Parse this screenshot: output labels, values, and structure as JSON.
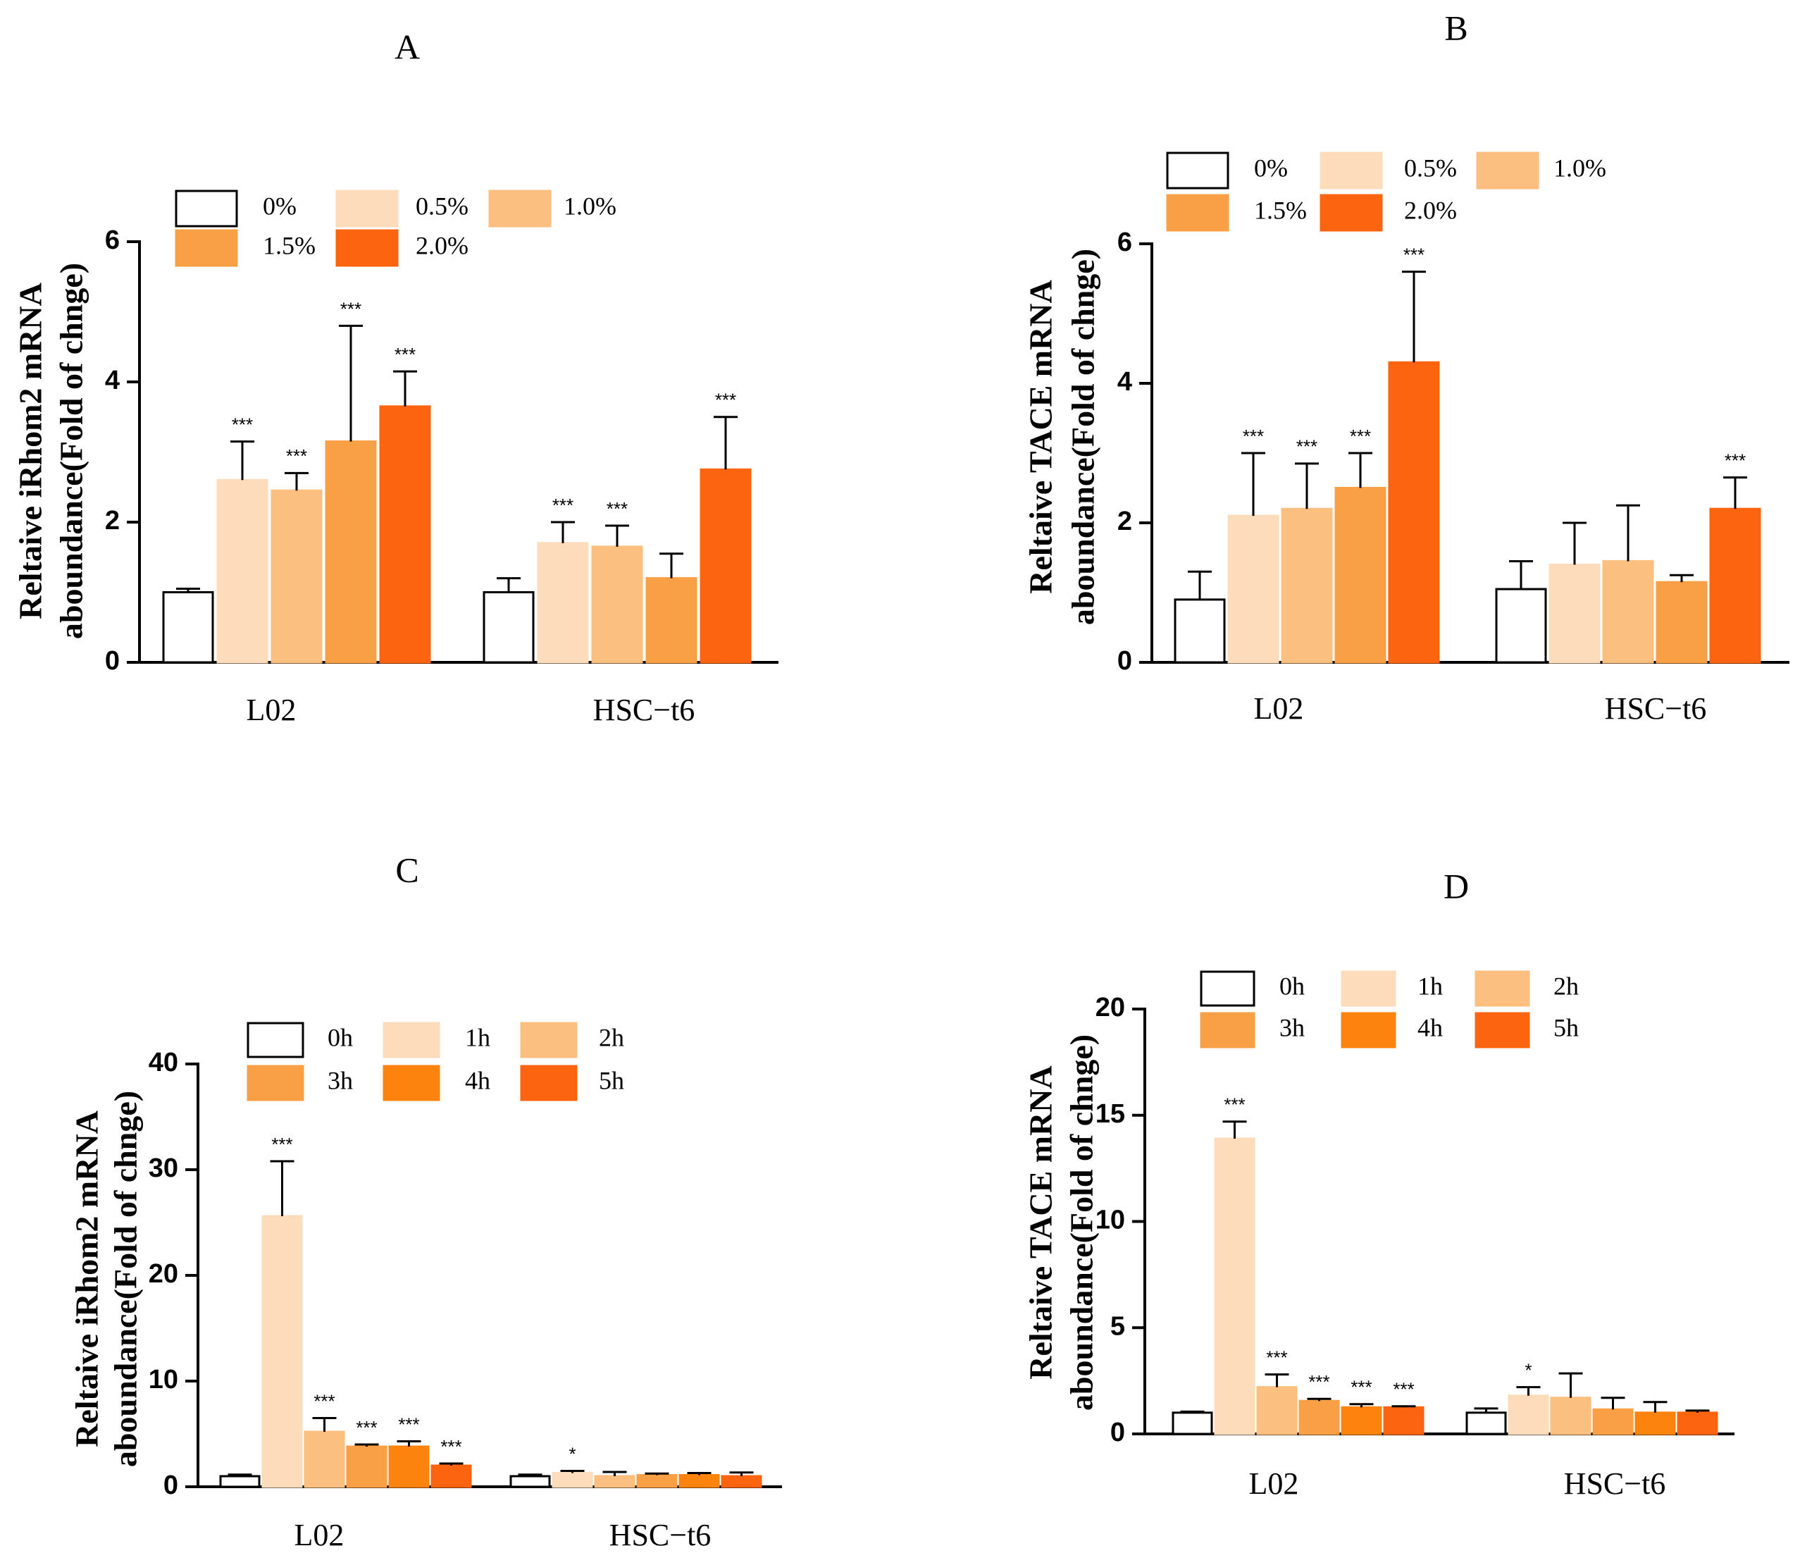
{
  "chart_data": [
    {
      "panel": "A",
      "type": "bar",
      "title": "A",
      "xlabel": "",
      "ylabel": [
        "Reltaive iRhom2 mRNA",
        "aboundance(Fold of chnge)"
      ],
      "ylim": [
        0,
        6
      ],
      "yticks": [
        0,
        2,
        4,
        6
      ],
      "categories": [
        "L02",
        "HSC−t6"
      ],
      "series": [
        {
          "name": "0%",
          "color": "#ffffff",
          "values": [
            1.0,
            1.0
          ],
          "errors": [
            0.05,
            0.2
          ],
          "sig": [
            "",
            ""
          ]
        },
        {
          "name": "0.5%",
          "color": "#fddcbc",
          "values": [
            2.6,
            1.7
          ],
          "errors": [
            0.55,
            0.3
          ],
          "sig": [
            "***",
            "***"
          ]
        },
        {
          "name": "1.0%",
          "color": "#fbbf80",
          "values": [
            2.45,
            1.65
          ],
          "errors": [
            0.25,
            0.3
          ],
          "sig": [
            "***",
            "***"
          ]
        },
        {
          "name": "1.5%",
          "color": "#f99f46",
          "values": [
            3.15,
            1.2
          ],
          "errors": [
            1.65,
            0.35
          ],
          "sig": [
            "***",
            ""
          ]
        },
        {
          "name": "2.0%",
          "color": "#fc6410",
          "values": [
            3.65,
            2.75
          ],
          "errors": [
            0.5,
            0.75
          ],
          "sig": [
            "***",
            "***"
          ]
        }
      ]
    },
    {
      "panel": "B",
      "type": "bar",
      "title": "B",
      "xlabel": "",
      "ylabel": [
        "Reltaive TACE mRNA",
        "aboundance(Fold of chnge)"
      ],
      "ylim": [
        0,
        6
      ],
      "yticks": [
        0,
        2,
        4,
        6
      ],
      "categories": [
        "L02",
        "HSC−t6"
      ],
      "series": [
        {
          "name": "0%",
          "color": "#ffffff",
          "values": [
            0.9,
            1.05
          ],
          "errors": [
            0.4,
            0.4
          ],
          "sig": [
            "",
            ""
          ]
        },
        {
          "name": "0.5%",
          "color": "#fddcbc",
          "values": [
            2.1,
            1.4
          ],
          "errors": [
            0.9,
            0.6
          ],
          "sig": [
            "***",
            ""
          ]
        },
        {
          "name": "1.0%",
          "color": "#fbbf80",
          "values": [
            2.2,
            1.45
          ],
          "errors": [
            0.65,
            0.8
          ],
          "sig": [
            "***",
            ""
          ]
        },
        {
          "name": "1.5%",
          "color": "#f99f46",
          "values": [
            2.5,
            1.15
          ],
          "errors": [
            0.5,
            0.1
          ],
          "sig": [
            "***",
            ""
          ]
        },
        {
          "name": "2.0%",
          "color": "#fc6410",
          "values": [
            4.3,
            2.2
          ],
          "errors": [
            1.3,
            0.45
          ],
          "sig": [
            "***",
            "***"
          ]
        }
      ]
    },
    {
      "panel": "C",
      "type": "bar",
      "title": "C",
      "xlabel": "",
      "ylabel": [
        "Reltaive iRhom2 mRNA",
        "aboundance(Fold of chnge)"
      ],
      "ylim": [
        0,
        40
      ],
      "yticks": [
        0,
        10,
        20,
        30,
        40
      ],
      "categories": [
        "L02",
        "HSC−t6"
      ],
      "series": [
        {
          "name": "0h",
          "color": "#ffffff",
          "values": [
            1.0,
            1.0
          ],
          "errors": [
            0.15,
            0.15
          ],
          "sig": [
            "",
            ""
          ]
        },
        {
          "name": "1h",
          "color": "#fddcbc",
          "values": [
            25.6,
            1.3
          ],
          "errors": [
            5.2,
            0.2
          ],
          "sig": [
            "***",
            "*"
          ]
        },
        {
          "name": "2h",
          "color": "#fbbf80",
          "values": [
            5.2,
            1.0
          ],
          "errors": [
            1.3,
            0.4
          ],
          "sig": [
            "***",
            ""
          ]
        },
        {
          "name": "3h",
          "color": "#f99f46",
          "values": [
            3.8,
            1.1
          ],
          "errors": [
            0.2,
            0.15
          ],
          "sig": [
            "***",
            ""
          ]
        },
        {
          "name": "4h",
          "color": "#fb830e",
          "values": [
            3.8,
            1.1
          ],
          "errors": [
            0.5,
            0.2
          ],
          "sig": [
            "***",
            ""
          ]
        },
        {
          "name": "5h",
          "color": "#fc6410",
          "values": [
            2.0,
            1.0
          ],
          "errors": [
            0.2,
            0.35
          ],
          "sig": [
            "***",
            ""
          ]
        }
      ]
    },
    {
      "panel": "D",
      "type": "bar",
      "title": "D",
      "xlabel": "",
      "ylabel": [
        "Reltaive TACE mRNA",
        "aboundance(Fold of chnge)"
      ],
      "ylim": [
        0,
        20
      ],
      "yticks": [
        0,
        5,
        10,
        15,
        20
      ],
      "categories": [
        "L02",
        "HSC−t6"
      ],
      "series": [
        {
          "name": "0h",
          "color": "#ffffff",
          "values": [
            1.0,
            1.0
          ],
          "errors": [
            0.05,
            0.2
          ],
          "sig": [
            "",
            ""
          ]
        },
        {
          "name": "1h",
          "color": "#fddcbc",
          "values": [
            13.9,
            1.8
          ],
          "errors": [
            0.8,
            0.4
          ],
          "sig": [
            "***",
            "*"
          ]
        },
        {
          "name": "2h",
          "color": "#fbbf80",
          "values": [
            2.2,
            1.7
          ],
          "errors": [
            0.6,
            1.15
          ],
          "sig": [
            "***",
            ""
          ]
        },
        {
          "name": "3h",
          "color": "#f99f46",
          "values": [
            1.55,
            1.15
          ],
          "errors": [
            0.1,
            0.55
          ],
          "sig": [
            "***",
            ""
          ]
        },
        {
          "name": "4h",
          "color": "#fb830e",
          "values": [
            1.25,
            1.0
          ],
          "errors": [
            0.15,
            0.5
          ],
          "sig": [
            "***",
            ""
          ]
        },
        {
          "name": "5h",
          "color": "#fc6410",
          "values": [
            1.25,
            1.0
          ],
          "errors": [
            0.05,
            0.1
          ],
          "sig": [
            "***",
            ""
          ]
        }
      ]
    }
  ]
}
